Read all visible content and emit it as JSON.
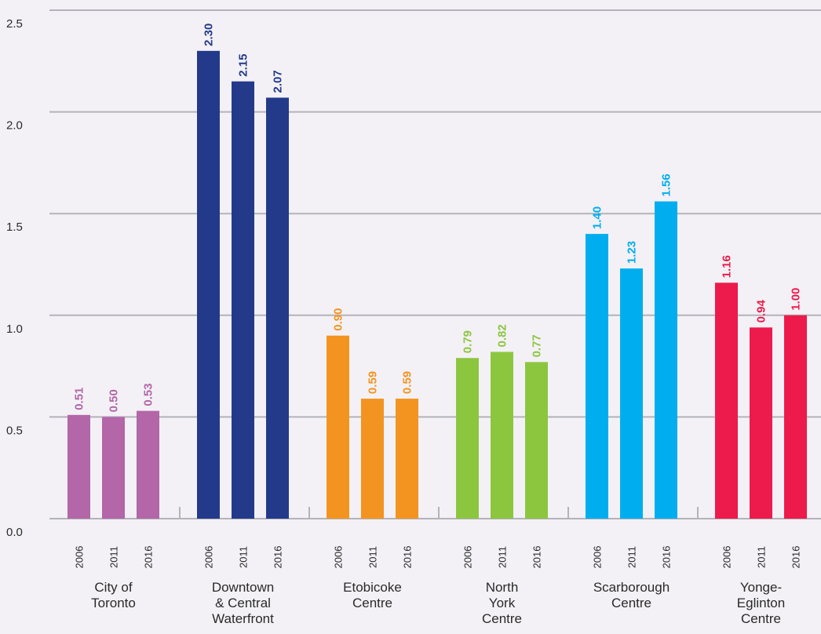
{
  "chart_data": {
    "type": "bar",
    "ylim": [
      0,
      2.5
    ],
    "yticks": [
      "0.0",
      "0.5",
      "1.0",
      "1.5",
      "2.0",
      "2.5"
    ],
    "grid": true,
    "groups": [
      {
        "label": [
          "City of",
          "Toronto"
        ],
        "color": "#b366a8",
        "years": [
          "2006",
          "2011",
          "2016"
        ],
        "values": [
          0.51,
          0.5,
          0.53
        ],
        "value_labels": [
          "0.51",
          "0.50",
          "0.53"
        ]
      },
      {
        "label": [
          "Downtown",
          "& Central",
          "Waterfront"
        ],
        "color": "#233a8a",
        "years": [
          "2006",
          "2011",
          "2016"
        ],
        "values": [
          2.3,
          2.15,
          2.07
        ],
        "value_labels": [
          "2.30",
          "2.15",
          "2.07"
        ]
      },
      {
        "label": [
          "Etobicoke",
          "Centre"
        ],
        "color": "#f39420",
        "years": [
          "2006",
          "2011",
          "2016"
        ],
        "values": [
          0.9,
          0.59,
          0.59
        ],
        "value_labels": [
          "0.90",
          "0.59",
          "0.59"
        ]
      },
      {
        "label": [
          "North",
          "York",
          "Centre"
        ],
        "color": "#8cc63f",
        "years": [
          "2006",
          "2011",
          "2016"
        ],
        "values": [
          0.79,
          0.82,
          0.77
        ],
        "value_labels": [
          "0.79",
          "0.82",
          "0.77"
        ]
      },
      {
        "label": [
          "Scarborough",
          "Centre"
        ],
        "color": "#00aeef",
        "years": [
          "2006",
          "2011",
          "2016"
        ],
        "values": [
          1.4,
          1.23,
          1.56
        ],
        "value_labels": [
          "1.40",
          "1.23",
          "1.56"
        ]
      },
      {
        "label": [
          "Yonge-",
          "Eglinton",
          "Centre"
        ],
        "color": "#ed1b4b",
        "years": [
          "2006",
          "2011",
          "2016"
        ],
        "values": [
          1.16,
          0.94,
          1.0
        ],
        "value_labels": [
          "1.16",
          "0.94",
          "1.00"
        ]
      }
    ]
  }
}
